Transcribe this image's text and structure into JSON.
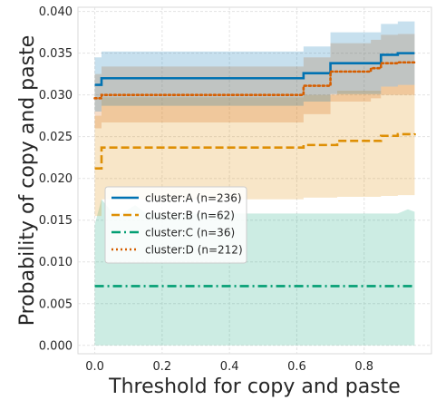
{
  "chart_data": {
    "type": "line",
    "xlabel": "Threshold for copy and paste",
    "ylabel": "Probability of copy and paste",
    "xlim": [
      -0.05,
      1.0
    ],
    "ylim": [
      -0.001,
      0.0405
    ],
    "x_ticks": [
      0.0,
      0.2,
      0.4,
      0.6,
      0.8
    ],
    "x_tick_labels": [
      "0.0",
      "0.2",
      "0.4",
      "0.6",
      "0.8"
    ],
    "y_ticks": [
      0.0,
      0.005,
      0.01,
      0.015,
      0.02,
      0.025,
      0.03,
      0.035,
      0.04
    ],
    "y_tick_labels": [
      "0.000",
      "0.005",
      "0.010",
      "0.015",
      "0.020",
      "0.025",
      "0.030",
      "0.035",
      "0.040"
    ],
    "grid": true,
    "legend_position": "center-left",
    "series": [
      {
        "name": "cluster:A (n=236)",
        "color": "#0072b2",
        "style": "solid",
        "x": [
          0.0,
          0.02,
          0.05,
          0.1,
          0.2,
          0.3,
          0.4,
          0.5,
          0.6,
          0.62,
          0.65,
          0.68,
          0.7,
          0.75,
          0.8,
          0.82,
          0.85,
          0.9,
          0.95
        ],
        "y": [
          0.0312,
          0.032,
          0.032,
          0.032,
          0.032,
          0.032,
          0.032,
          0.032,
          0.032,
          0.0326,
          0.0326,
          0.0326,
          0.0338,
          0.0338,
          0.0338,
          0.0338,
          0.0348,
          0.035,
          0.035
        ],
        "band_low": [
          0.028,
          0.0287,
          0.0287,
          0.0287,
          0.0287,
          0.0287,
          0.0287,
          0.0287,
          0.0287,
          0.0292,
          0.0292,
          0.0292,
          0.0301,
          0.0301,
          0.0301,
          0.0301,
          0.031,
          0.0312,
          0.0312
        ],
        "band_high": [
          0.0345,
          0.0352,
          0.0352,
          0.0352,
          0.0352,
          0.0352,
          0.0352,
          0.0352,
          0.0352,
          0.0358,
          0.0358,
          0.0358,
          0.0375,
          0.0375,
          0.0375,
          0.0375,
          0.0385,
          0.0388,
          0.0388
        ]
      },
      {
        "name": "cluster:B (n=62)",
        "color": "#de8f05",
        "style": "dashed",
        "x": [
          0.0,
          0.02,
          0.05,
          0.1,
          0.2,
          0.3,
          0.4,
          0.5,
          0.6,
          0.62,
          0.65,
          0.7,
          0.72,
          0.75,
          0.8,
          0.85,
          0.9,
          0.95
        ],
        "y": [
          0.0212,
          0.0237,
          0.0237,
          0.0237,
          0.0237,
          0.0237,
          0.0237,
          0.0237,
          0.0237,
          0.024,
          0.024,
          0.024,
          0.0245,
          0.0245,
          0.0245,
          0.0251,
          0.0253,
          0.0254
        ],
        "band_low": [
          0.0155,
          0.0175,
          0.0175,
          0.0175,
          0.0175,
          0.0175,
          0.0175,
          0.0175,
          0.0175,
          0.0177,
          0.0177,
          0.0177,
          0.0178,
          0.0178,
          0.0178,
          0.0179,
          0.018,
          0.018
        ],
        "band_high": [
          0.0275,
          0.0297,
          0.0297,
          0.0297,
          0.0297,
          0.0297,
          0.0297,
          0.0297,
          0.0297,
          0.03,
          0.03,
          0.03,
          0.0305,
          0.0305,
          0.0305,
          0.031,
          0.0312,
          0.0312
        ]
      },
      {
        "name": "cluster:C (n=36)",
        "color": "#029e73",
        "style": "dashdot",
        "x": [
          0.0,
          0.95
        ],
        "y": [
          0.0071,
          0.0071
        ],
        "band_low": [
          0.0,
          0.0
        ],
        "band_high": [
          0.0158,
          0.0158
        ],
        "band_high_detail": {
          "x": [
            0.0,
            0.02,
            0.05,
            0.08,
            0.12,
            0.15,
            0.2,
            0.3,
            0.4,
            0.5,
            0.6,
            0.7,
            0.8,
            0.9,
            0.93,
            0.95
          ],
          "y": [
            0.0145,
            0.0175,
            0.016,
            0.0158,
            0.0168,
            0.0159,
            0.0158,
            0.0158,
            0.0158,
            0.0158,
            0.0158,
            0.0158,
            0.0158,
            0.0158,
            0.0163,
            0.016
          ]
        }
      },
      {
        "name": "cluster:D (n=212)",
        "color": "#d55e00",
        "style": "dotted",
        "x": [
          0.0,
          0.02,
          0.05,
          0.1,
          0.2,
          0.3,
          0.4,
          0.5,
          0.6,
          0.62,
          0.65,
          0.68,
          0.7,
          0.75,
          0.8,
          0.82,
          0.85,
          0.9,
          0.95
        ],
        "y": [
          0.0296,
          0.03,
          0.03,
          0.03,
          0.03,
          0.03,
          0.03,
          0.03,
          0.03,
          0.0311,
          0.0311,
          0.0311,
          0.0328,
          0.0328,
          0.0328,
          0.0332,
          0.0338,
          0.0339,
          0.0339
        ],
        "band_low": [
          0.026,
          0.0267,
          0.0267,
          0.0267,
          0.0267,
          0.0267,
          0.0267,
          0.0267,
          0.0267,
          0.0277,
          0.0277,
          0.0277,
          0.0292,
          0.0292,
          0.0292,
          0.0296,
          0.03,
          0.03,
          0.03
        ],
        "band_high": [
          0.0325,
          0.0334,
          0.0334,
          0.0334,
          0.0334,
          0.0334,
          0.0334,
          0.0334,
          0.0334,
          0.0345,
          0.0345,
          0.0345,
          0.0362,
          0.0362,
          0.0362,
          0.0366,
          0.0372,
          0.0373,
          0.0373
        ]
      }
    ]
  }
}
